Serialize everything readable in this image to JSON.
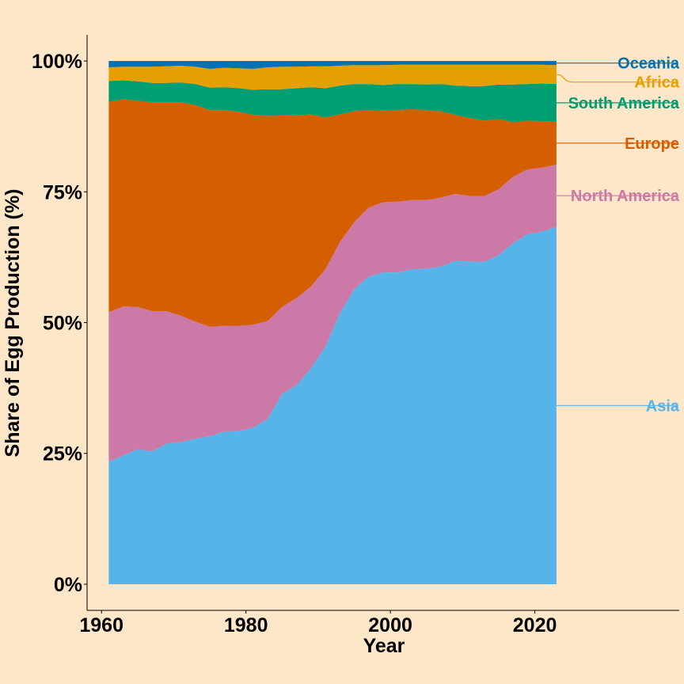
{
  "chart_data": {
    "type": "area",
    "stacked": true,
    "title": "",
    "xlabel": "Year",
    "ylabel": "Share of Egg Production (%)",
    "xlim": [
      1958,
      2040
    ],
    "ylim": [
      -5,
      105
    ],
    "x_ticks": [
      1960,
      1980,
      2000,
      2020
    ],
    "x_tick_labels": [
      "1960",
      "1980",
      "2000",
      "2020"
    ],
    "y_ticks": [
      0,
      25,
      50,
      75,
      100
    ],
    "y_tick_labels": [
      "0%",
      "25%",
      "50%",
      "75%",
      "100%"
    ],
    "grid": false,
    "legend": "direct-labels-right",
    "background_color": "#FEE6C8",
    "x": [
      1961,
      1963,
      1965,
      1967,
      1969,
      1971,
      1973,
      1975,
      1977,
      1979,
      1981,
      1983,
      1985,
      1987,
      1989,
      1991,
      1993,
      1995,
      1997,
      1999,
      2001,
      2003,
      2005,
      2007,
      2009,
      2011,
      2013,
      2015,
      2017,
      2019,
      2021,
      2023
    ],
    "series": [
      {
        "name": "Asia",
        "color": "#56B4E9",
        "values": [
          23.4,
          24.6,
          25.8,
          25.4,
          26.9,
          27.2,
          27.8,
          28.3,
          29.2,
          29.3,
          29.9,
          31.6,
          36.4,
          38.0,
          41.3,
          45.4,
          51.8,
          56.4,
          58.8,
          59.6,
          59.6,
          60.2,
          60.3,
          60.7,
          61.8,
          61.7,
          61.6,
          62.9,
          65.2,
          66.9,
          67.4,
          68.3
        ]
      },
      {
        "name": "North America",
        "color": "#CC79A7",
        "values": [
          28.6,
          28.5,
          27.2,
          26.8,
          25.3,
          24.1,
          22.4,
          20.9,
          20.2,
          20.1,
          19.7,
          18.7,
          16.6,
          16.7,
          15.6,
          14.8,
          13.6,
          12.8,
          13.2,
          13.4,
          13.5,
          13.2,
          13.1,
          13.2,
          12.8,
          12.5,
          12.6,
          12.6,
          12.7,
          12.4,
          12.2,
          11.9
        ]
      },
      {
        "name": "Europe",
        "color": "#D55E00",
        "values": [
          40.2,
          39.6,
          39.4,
          39.9,
          39.9,
          40.8,
          41.4,
          41.4,
          41.2,
          40.9,
          40.1,
          39.2,
          36.6,
          34.9,
          32.9,
          29.0,
          24.4,
          21.2,
          18.6,
          17.5,
          17.5,
          17.4,
          17.2,
          16.5,
          15.1,
          14.9,
          14.4,
          13.4,
          10.4,
          9.3,
          8.9,
          8.2
        ]
      },
      {
        "name": "South America",
        "color": "#009E73",
        "values": [
          4.0,
          3.6,
          3.7,
          3.7,
          3.7,
          3.8,
          4.0,
          4.3,
          4.4,
          4.5,
          4.8,
          5.1,
          5.0,
          5.2,
          5.2,
          5.6,
          5.5,
          5.2,
          5.0,
          4.9,
          5.0,
          4.8,
          4.9,
          5.2,
          5.6,
          6.1,
          6.6,
          6.6,
          7.2,
          7.0,
          7.2,
          7.2
        ]
      },
      {
        "name": "Africa",
        "color": "#E69F00",
        "values": [
          2.6,
          2.6,
          2.8,
          3.1,
          3.2,
          3.2,
          3.3,
          3.6,
          3.7,
          3.8,
          4.0,
          4.2,
          4.3,
          4.1,
          4.0,
          4.2,
          3.8,
          3.6,
          3.6,
          3.8,
          3.7,
          3.7,
          3.8,
          3.7,
          4.0,
          4.1,
          4.1,
          3.8,
          3.8,
          3.7,
          3.6,
          3.6
        ]
      },
      {
        "name": "Oceania",
        "color": "#0072B2",
        "values": [
          1.2,
          1.1,
          1.1,
          1.1,
          1.0,
          0.9,
          1.1,
          1.5,
          1.3,
          1.4,
          1.5,
          1.2,
          1.1,
          1.1,
          1.0,
          1.0,
          0.9,
          0.8,
          0.8,
          0.8,
          0.7,
          0.7,
          0.7,
          0.7,
          0.7,
          0.7,
          0.7,
          0.7,
          0.7,
          0.7,
          0.7,
          0.8
        ]
      }
    ]
  }
}
